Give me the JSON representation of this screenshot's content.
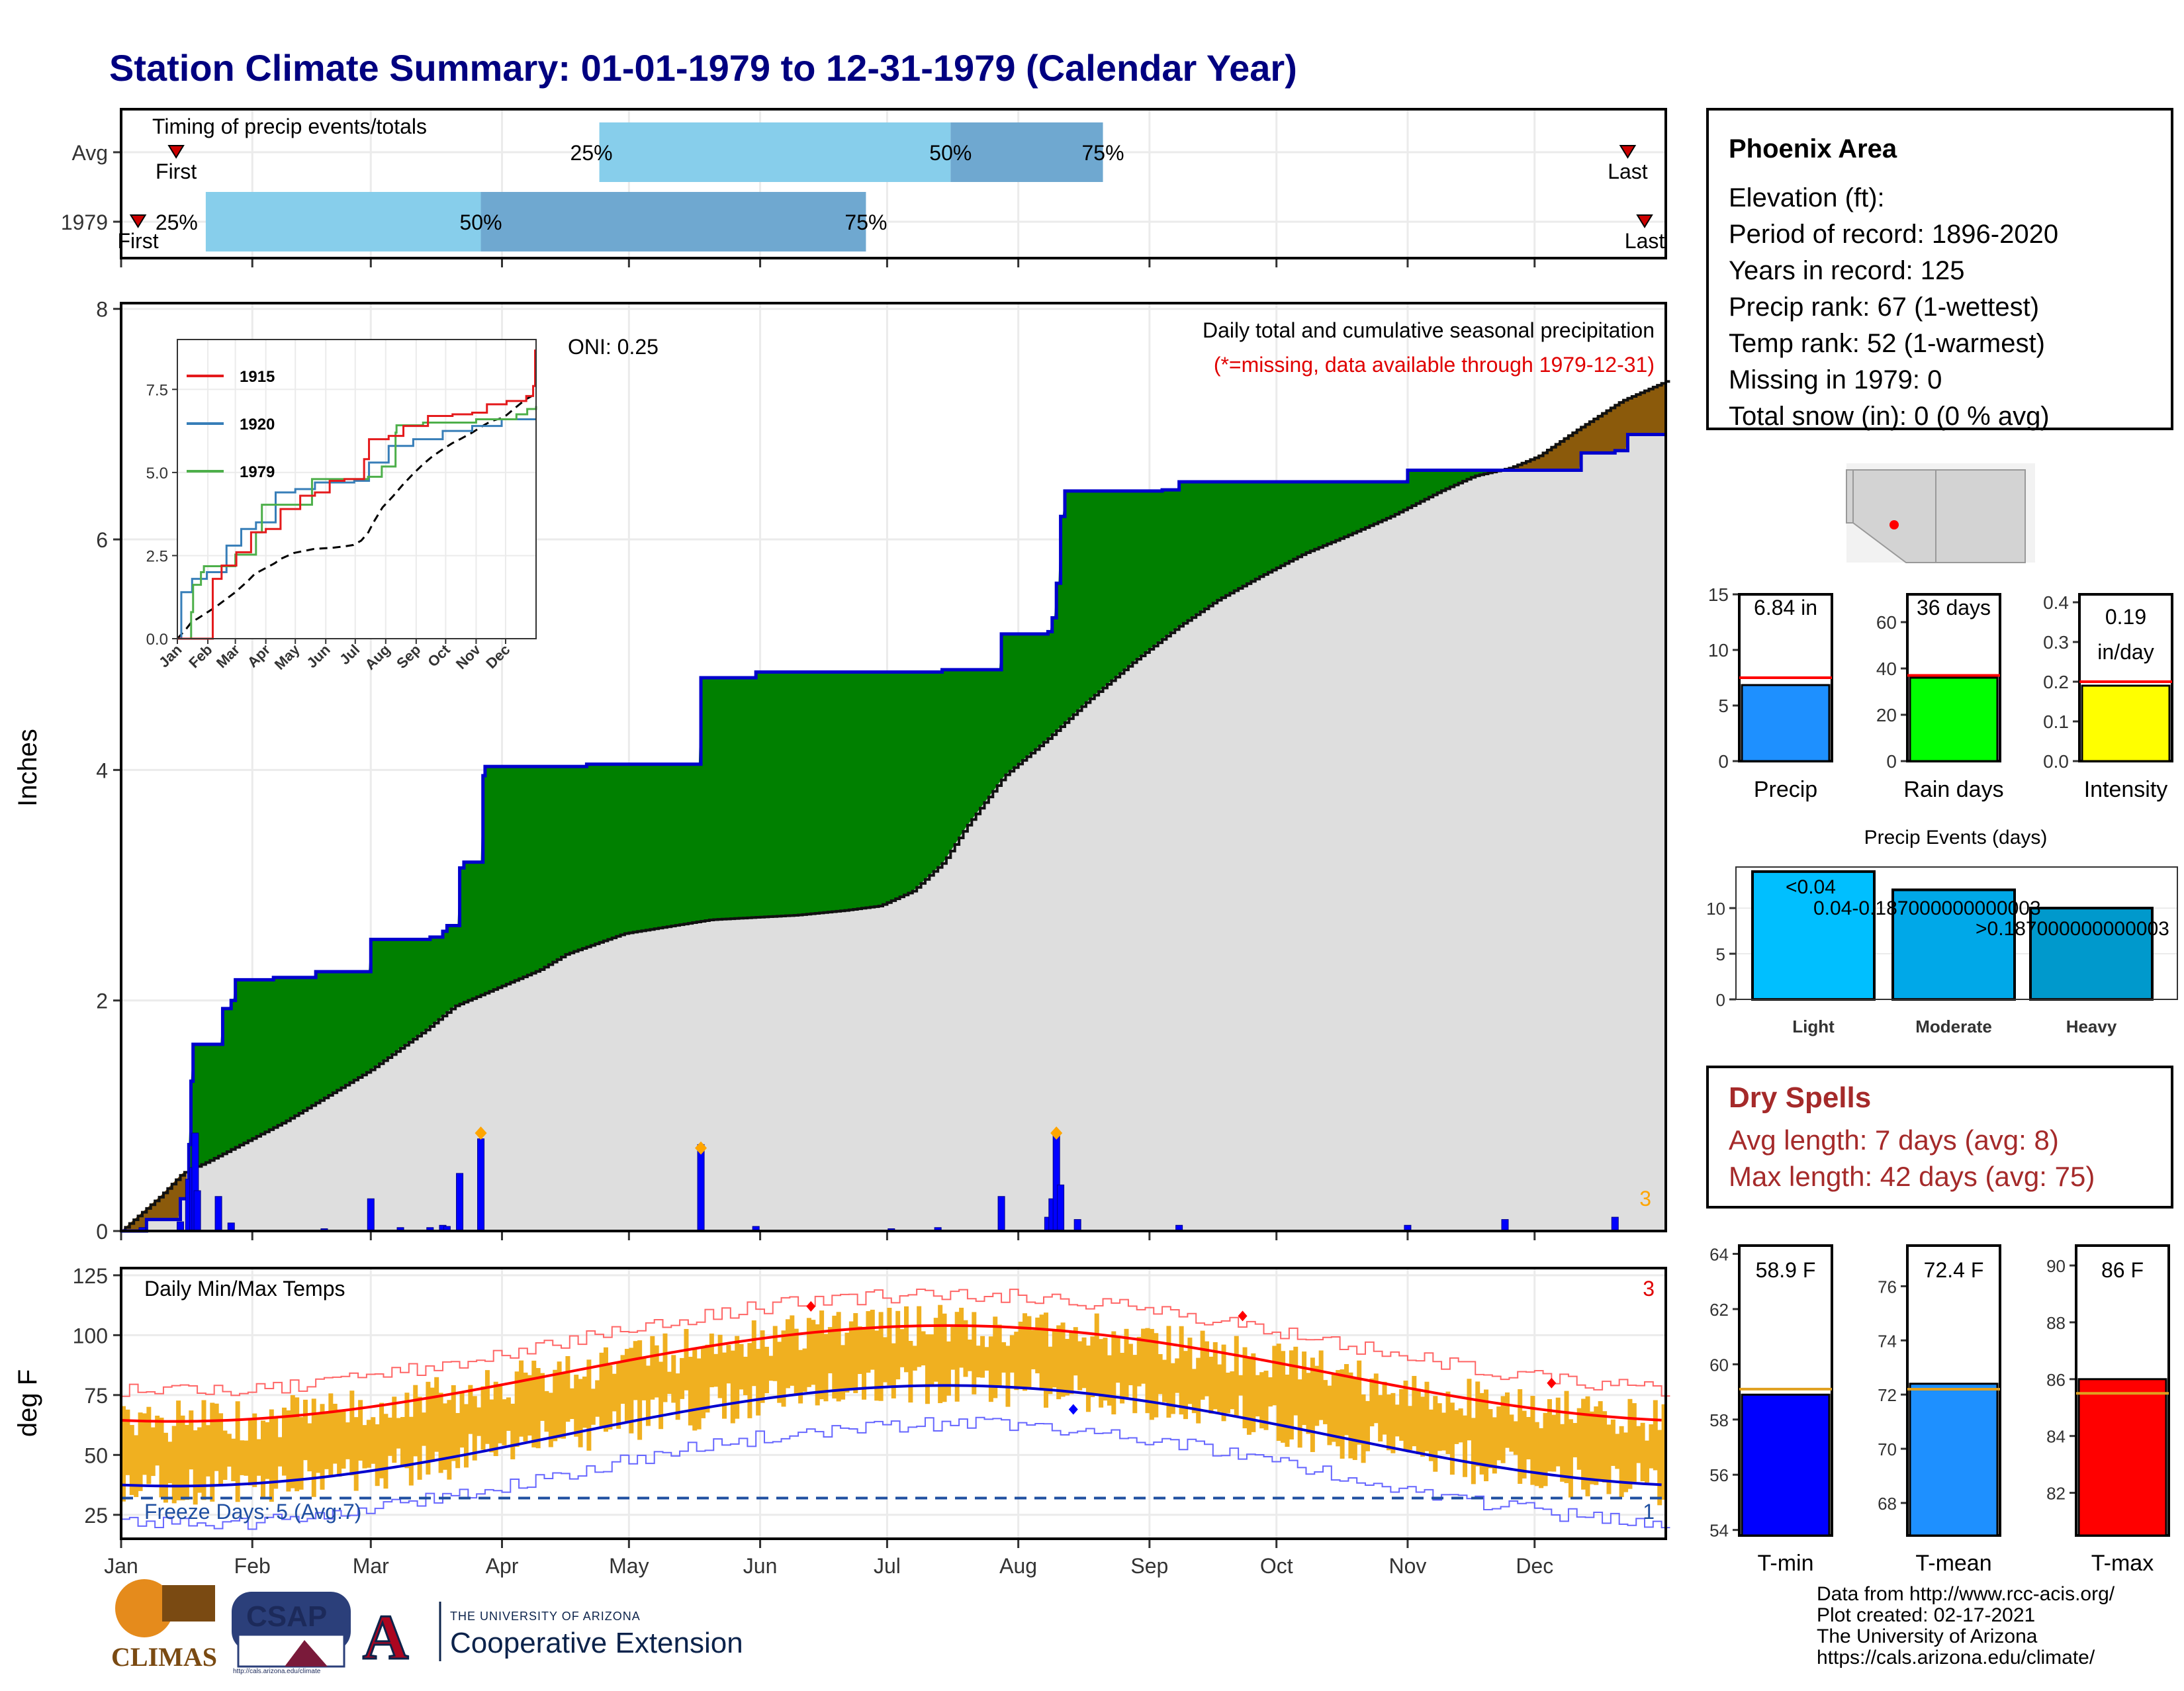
{
  "title": "Station Climate Summary: 01-01-1979 to 12-31-1979 (Calendar Year)",
  "timing_panel": {
    "title": "Timing of precip events/totals",
    "rows": [
      {
        "label": "Avg",
        "first_label": "First",
        "last_label": "Last",
        "p25_label": "25%",
        "p50_label": "50%",
        "p75_label": "75%",
        "first_day": 13,
        "p25_day": 113,
        "p50_day": 196,
        "p75_day": 232,
        "last_day": 356
      },
      {
        "label": "1979",
        "first_label": "First",
        "last_label": "Last",
        "p25_label": "25%",
        "p50_label": "50%",
        "p75_label": "75%",
        "first_day": 4,
        "p25_day": 20,
        "p50_day": 85,
        "p75_day": 176,
        "last_day": 360
      }
    ],
    "colors": {
      "light": "#87ceeb",
      "dark": "#6fa8d0",
      "marker": "#cc0000"
    }
  },
  "precip_panel": {
    "ylabel": "Inches",
    "subtitle": "Daily total and cumulative seasonal precipitation",
    "missing_note": "(*=missing, data available through 1979-12-31)",
    "oni_label": "ONI: 0.25",
    "missing_count": "3"
  },
  "inset": {
    "series_1915": "1915",
    "series_1920": "1920",
    "series_1979": "1979",
    "colors": {
      "1915": "#e41a1c",
      "1920": "#377eb8",
      "1979": "#4daf4a"
    }
  },
  "temp_panel": {
    "title": "Daily Min/Max Temps",
    "ylabel": "deg F",
    "freeze_label": "Freeze Days: 5 (Avg:7)",
    "missing_count": "3",
    "freeze_count": "1"
  },
  "months": [
    "Jan",
    "Feb",
    "Mar",
    "Apr",
    "May",
    "Jun",
    "Jul",
    "Aug",
    "Sep",
    "Oct",
    "Nov",
    "Dec"
  ],
  "info_box": {
    "station": "Phoenix Area",
    "elevation": "Elevation (ft):",
    "period": "Period of record: 1896-2020",
    "years": "Years in record: 125",
    "precip_rank": "Precip rank: 67 (1-wettest)",
    "temp_rank": "Temp rank: 52 (1-warmest)",
    "missing": "Missing in 1979: 0",
    "snow": "Total snow (in): 0 (0 % avg)"
  },
  "mini_precip": {
    "label": "Precip",
    "value_label": "6.84 in",
    "value": 6.84,
    "avg": 7.5,
    "ymax": 15,
    "ticks": [
      "0",
      "5",
      "10",
      "15"
    ],
    "color": "#1e90ff"
  },
  "mini_raindays": {
    "label": "Rain days",
    "value_label": "36 days",
    "value": 36,
    "avg": 37,
    "ymax": 72,
    "ticks": [
      "0",
      "20",
      "40",
      "60"
    ],
    "color": "#00ff00"
  },
  "mini_intensity": {
    "label": "Intensity",
    "value_label": "0.19",
    "value_label2": "in/day",
    "value": 0.19,
    "avg": 0.2,
    "ymax": 0.42,
    "ticks": [
      "0.0",
      "0.1",
      "0.2",
      "0.3",
      "0.4"
    ],
    "color": "#ffff00"
  },
  "precip_events": {
    "title": "Precip Events (days)",
    "categories": [
      "Light",
      "Moderate",
      "Heavy"
    ],
    "labels": [
      "<0.04",
      "0.04-0.187000000000003",
      ">0.187000000000003"
    ],
    "values": [
      14,
      12,
      10
    ],
    "ymax": 14.5,
    "ticks": [
      "0",
      "5",
      "10"
    ],
    "colors": [
      "#00bfff",
      "#00a8e8",
      "#0099cc"
    ]
  },
  "dry_spells": {
    "title": "Dry Spells",
    "avg": "Avg length: 7 days (avg: 8)",
    "max": "Max length: 42 days (avg: 75)"
  },
  "temp_bars": [
    {
      "label": "T-min",
      "value_label": "58.9 F",
      "value": 58.9,
      "avg": 59.1,
      "ymin": 53.8,
      "ymax": 64.3,
      "ticks": [
        "54",
        "56",
        "58",
        "60",
        "62",
        "64"
      ],
      "tickvals": [
        54,
        56,
        58,
        60,
        62,
        64
      ],
      "color": "#0000ff"
    },
    {
      "label": "T-mean",
      "value_label": "72.4 F",
      "value": 72.4,
      "avg": 72.2,
      "ymin": 66.8,
      "ymax": 77.5,
      "ticks": [
        "68",
        "70",
        "72",
        "74",
        "76"
      ],
      "tickvals": [
        68,
        70,
        72,
        74,
        76
      ],
      "color": "#1e90ff"
    },
    {
      "label": "T-max",
      "value_label": "86 F",
      "value": 86.0,
      "avg": 85.5,
      "ymin": 80.5,
      "ymax": 90.7,
      "ticks": [
        "82",
        "84",
        "86",
        "88",
        "90"
      ],
      "tickvals": [
        82,
        84,
        86,
        88,
        90
      ],
      "color": "#ff0000"
    }
  ],
  "footer": {
    "line1": "Data from http://www.rcc-acis.org/",
    "line2": "Plot created: 02-17-2021",
    "line3": "The University of Arizona",
    "line4": "https://cals.arizona.edu/climate/"
  },
  "logos": {
    "climas": "CLIMAS",
    "csap": "CSAP",
    "csap_url": "http://cals.arizona.edu/climate",
    "ua_small": "THE UNIVERSITY OF ARIZONA",
    "ua_big": "Cooperative Extension",
    "ua_letter": "A"
  }
}
